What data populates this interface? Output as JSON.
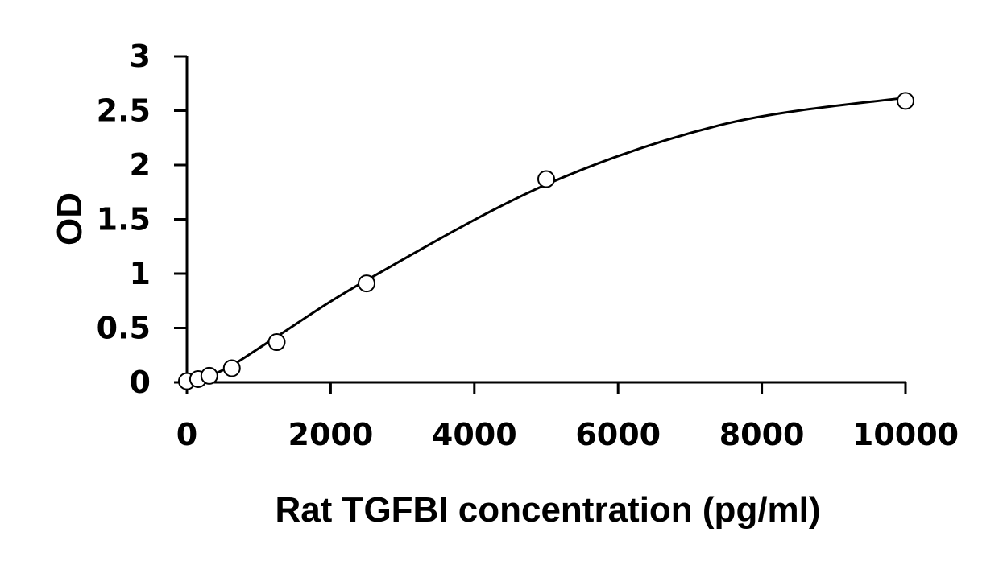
{
  "chart_data": {
    "type": "scatter",
    "xlabel": "Rat TGFBI concentration (pg/ml)",
    "ylabel": "OD",
    "xlim": [
      0,
      10000
    ],
    "ylim": [
      0,
      3
    ],
    "x_ticks": [
      0,
      2000,
      4000,
      6000,
      8000,
      10000
    ],
    "y_ticks": [
      0,
      0.5,
      1,
      1.5,
      2,
      2.5,
      3
    ],
    "x_tick_labels": [
      "0",
      "2000",
      "4000",
      "6000",
      "8000",
      "10000"
    ],
    "y_tick_labels": [
      "0",
      "0.5",
      "1",
      "1.5",
      "2",
      "2.5",
      "3"
    ],
    "grid": false,
    "legend": "none",
    "marker": "open-circle",
    "series": [
      {
        "x": [
          0,
          156,
          312,
          625,
          1250,
          2500,
          5000,
          10000
        ],
        "y": [
          0.01,
          0.03,
          0.06,
          0.13,
          0.37,
          0.91,
          1.87,
          2.59
        ]
      }
    ],
    "fit_curve": {
      "x": [
        250,
        625,
        1250,
        2500,
        5000,
        7500,
        10000
      ],
      "y": [
        0.04,
        0.155,
        0.42,
        0.94,
        1.82,
        2.38,
        2.62
      ]
    }
  }
}
